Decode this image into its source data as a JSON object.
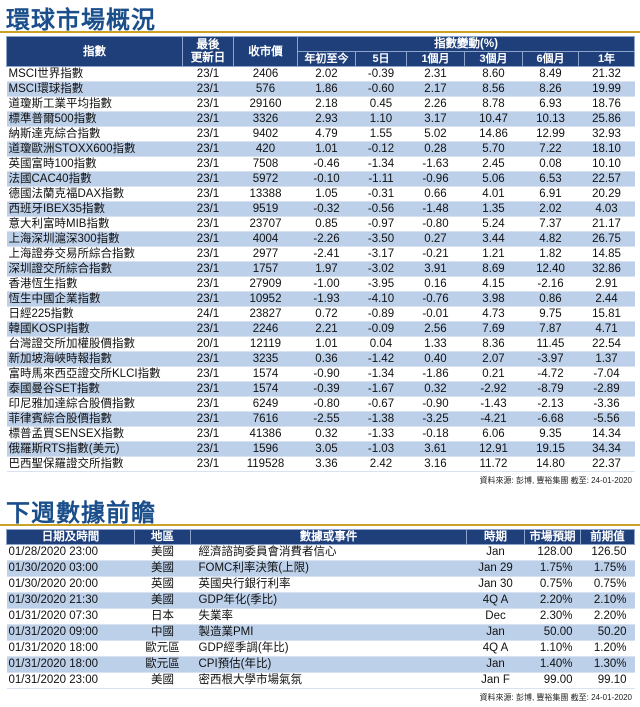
{
  "market": {
    "title": "環球市場概況",
    "headers": {
      "index": "指數",
      "updated_l1": "最後",
      "updated_l2": "更新日",
      "close": "收市價",
      "change": "指數變動(%)",
      "periods": [
        "年初至今",
        "5日",
        "1個月",
        "3個月",
        "6個月",
        "1年"
      ]
    },
    "rows": [
      [
        "MSCI世界指數",
        "23/1",
        "2406",
        "2.02",
        "-0.39",
        "2.31",
        "8.60",
        "8.49",
        "21.32"
      ],
      [
        "MSCI環球指數",
        "23/1",
        "576",
        "1.86",
        "-0.60",
        "2.17",
        "8.56",
        "8.26",
        "19.99"
      ],
      [
        "道瓊斯工業平均指數",
        "23/1",
        "29160",
        "2.18",
        "0.45",
        "2.26",
        "8.78",
        "6.93",
        "18.76"
      ],
      [
        "標準普爾500指數",
        "23/1",
        "3326",
        "2.93",
        "1.10",
        "3.17",
        "10.47",
        "10.13",
        "25.86"
      ],
      [
        "納斯達克綜合指數",
        "23/1",
        "9402",
        "4.79",
        "1.55",
        "5.02",
        "14.86",
        "12.99",
        "32.93"
      ],
      [
        "道瓊歐洲STOXX600指數",
        "23/1",
        "420",
        "1.01",
        "-0.12",
        "0.28",
        "5.70",
        "7.22",
        "18.10"
      ],
      [
        "英國富時100指數",
        "23/1",
        "7508",
        "-0.46",
        "-1.34",
        "-1.63",
        "2.45",
        "0.08",
        "10.10"
      ],
      [
        "法國CAC40指數",
        "23/1",
        "5972",
        "-0.10",
        "-1.11",
        "-0.96",
        "5.06",
        "6.53",
        "22.57"
      ],
      [
        "德國法蘭克福DAX指數",
        "23/1",
        "13388",
        "1.05",
        "-0.31",
        "0.66",
        "4.01",
        "6.91",
        "20.29"
      ],
      [
        "西班牙IBEX35指數",
        "23/1",
        "9519",
        "-0.32",
        "-0.56",
        "-1.48",
        "1.35",
        "2.02",
        "4.03"
      ],
      [
        "意大利富時MIB指數",
        "23/1",
        "23707",
        "0.85",
        "-0.97",
        "-0.80",
        "5.24",
        "7.37",
        "21.17"
      ],
      [
        "上海深圳滬深300指數",
        "23/1",
        "4004",
        "-2.26",
        "-3.50",
        "0.27",
        "3.44",
        "4.82",
        "26.75"
      ],
      [
        "上海證券交易所綜合指數",
        "23/1",
        "2977",
        "-2.41",
        "-3.17",
        "-0.21",
        "1.21",
        "1.82",
        "14.85"
      ],
      [
        "深圳證交所綜合指數",
        "23/1",
        "1757",
        "1.97",
        "-3.02",
        "3.91",
        "8.69",
        "12.40",
        "32.86"
      ],
      [
        "香港恆生指數",
        "23/1",
        "27909",
        "-1.00",
        "-3.95",
        "0.16",
        "4.15",
        "-2.16",
        "2.91"
      ],
      [
        "恆生中國企業指數",
        "23/1",
        "10952",
        "-1.93",
        "-4.10",
        "-0.76",
        "3.98",
        "0.86",
        "2.44"
      ],
      [
        "日經225指數",
        "24/1",
        "23827",
        "0.72",
        "-0.89",
        "-0.01",
        "4.73",
        "9.75",
        "15.81"
      ],
      [
        "韓國KOSPI指數",
        "23/1",
        "2246",
        "2.21",
        "-0.09",
        "2.56",
        "7.69",
        "7.87",
        "4.71"
      ],
      [
        "台灣證交所加權股價指數",
        "20/1",
        "12119",
        "1.01",
        "0.04",
        "1.33",
        "8.36",
        "11.45",
        "22.54"
      ],
      [
        "新加坡海峽時報指數",
        "23/1",
        "3235",
        "0.36",
        "-1.42",
        "0.40",
        "2.07",
        "-3.97",
        "1.37"
      ],
      [
        "富時馬來西亞證交所KLCI指數",
        "23/1",
        "1574",
        "-0.90",
        "-1.34",
        "-1.86",
        "0.21",
        "-4.72",
        "-7.04"
      ],
      [
        "泰國曼谷SET指數",
        "23/1",
        "1574",
        "-0.39",
        "-1.67",
        "0.32",
        "-2.92",
        "-8.79",
        "-2.89"
      ],
      [
        "印尼雅加達綜合股價指數",
        "23/1",
        "6249",
        "-0.80",
        "-0.67",
        "-0.90",
        "-1.43",
        "-2.13",
        "-3.36"
      ],
      [
        "菲律賓綜合股價指數",
        "23/1",
        "7616",
        "-2.55",
        "-1.38",
        "-3.25",
        "-4.21",
        "-6.68",
        "-5.56"
      ],
      [
        "標普孟買SENSEX指數",
        "23/1",
        "41386",
        "0.32",
        "-1.33",
        "-0.18",
        "6.06",
        "9.35",
        "14.34"
      ],
      [
        "俄羅斯RTS指數(美元)",
        "23/1",
        "1596",
        "3.05",
        "-1.03",
        "3.61",
        "12.91",
        "19.15",
        "34.34"
      ],
      [
        "巴西聖保羅證交所指數",
        "23/1",
        "119528",
        "3.36",
        "2.42",
        "3.16",
        "11.72",
        "14.80",
        "22.37"
      ]
    ],
    "source": "資料來源: 彭博, 豐裕集團 截至: 24-01-2020"
  },
  "events": {
    "title": "下週數據前瞻",
    "headers": [
      "日期及時間",
      "地區",
      "數據或事件",
      "時期",
      "市場預期",
      "前期值"
    ],
    "rows": [
      [
        "01/28/2020 23:00",
        "美國",
        "經濟諮詢委員會消費者信心",
        "Jan",
        "128.00",
        "126.50"
      ],
      [
        "01/30/2020 03:00",
        "美國",
        "FOMC利率決策(上限)",
        "Jan 29",
        "1.75%",
        "1.75%"
      ],
      [
        "01/30/2020 20:00",
        "英國",
        "英國央行銀行利率",
        "Jan 30",
        "0.75%",
        "0.75%"
      ],
      [
        "01/30/2020 21:30",
        "美國",
        "GDP年化(季比)",
        "4Q A",
        "2.20%",
        "2.10%"
      ],
      [
        "01/31/2020 07:30",
        "日本",
        "失業率",
        "Dec",
        "2.30%",
        "2.20%"
      ],
      [
        "01/31/2020 09:00",
        "中國",
        "製造業PMI",
        "Jan",
        "50.00",
        "50.20"
      ],
      [
        "01/31/2020 18:00",
        "歐元區",
        "GDP經季調(年比)",
        "4Q A",
        "1.10%",
        "1.20%"
      ],
      [
        "01/31/2020 18:00",
        "歐元區",
        "CPI預估(年比)",
        "Jan",
        "1.40%",
        "1.30%"
      ],
      [
        "01/31/2020 23:00",
        "美國",
        "密西根大學市場氣氛",
        "Jan F",
        "99.00",
        "99.10"
      ]
    ],
    "source": "資料來源: 彭博, 豐裕集團 截至: 24-01-2020"
  }
}
